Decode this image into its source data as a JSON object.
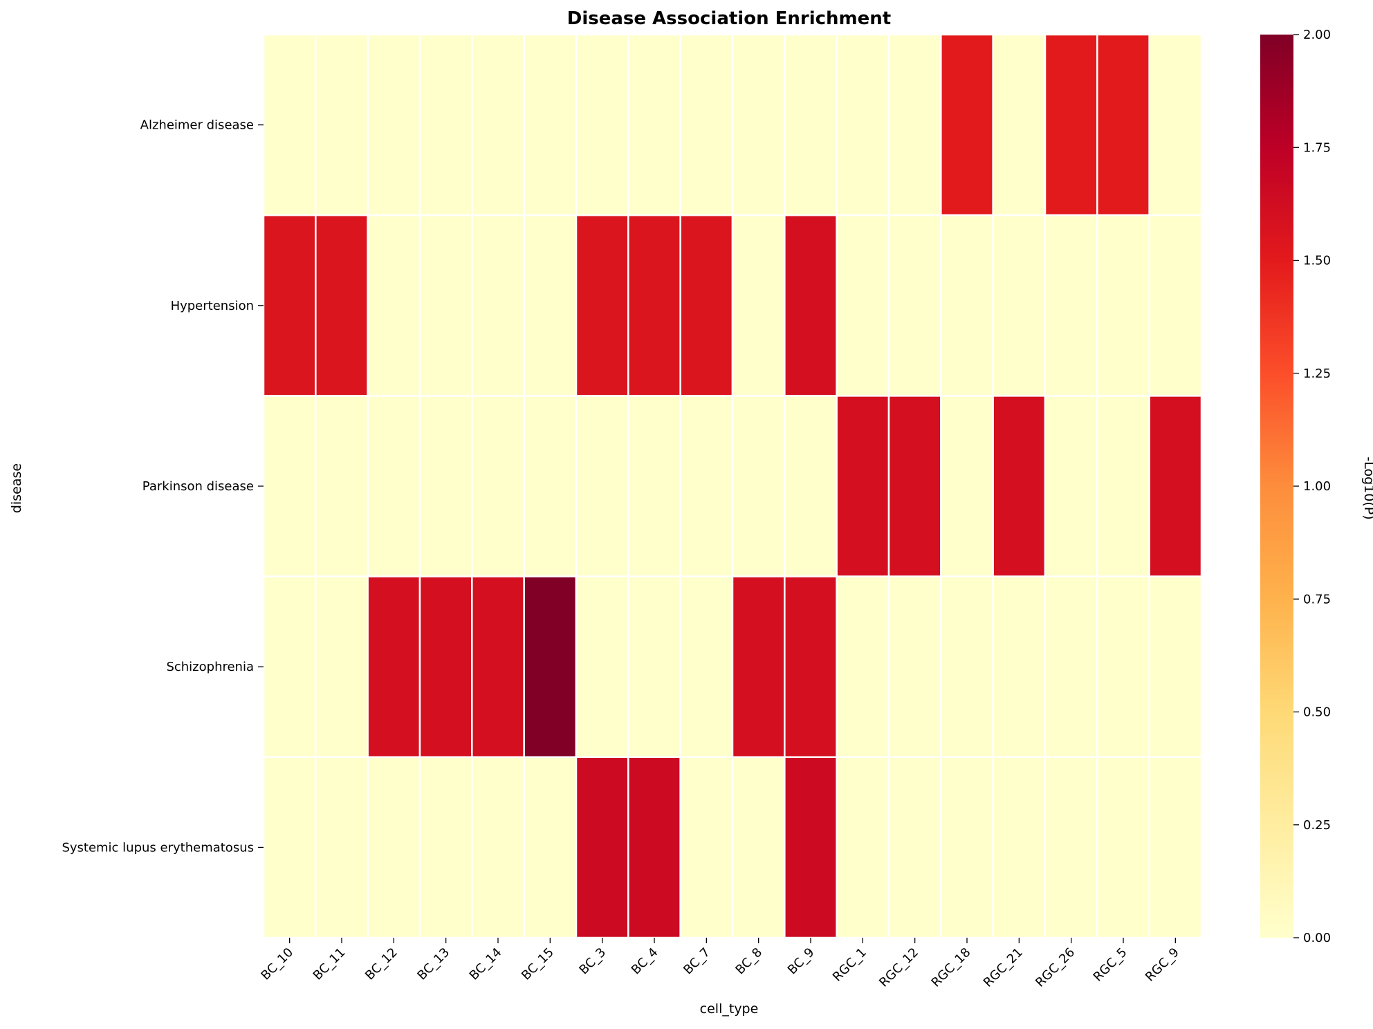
{
  "chart_data": {
    "type": "heatmap",
    "title": "Disease Association Enrichment",
    "xlabel": "cell_type",
    "ylabel": "disease",
    "colorbar_label": "-Log10(P)",
    "colormap": "YlOrRd",
    "vmin": 0,
    "vmax": 2,
    "colorbar_ticks": [
      "0.00",
      "0.25",
      "0.50",
      "0.75",
      "1.00",
      "1.25",
      "1.50",
      "1.75",
      "2.00"
    ],
    "x": [
      "BC_10",
      "BC_11",
      "BC_12",
      "BC_13",
      "BC_14",
      "BC_15",
      "BC_3",
      "BC_4",
      "BC_7",
      "BC_8",
      "BC_9",
      "RGC_1",
      "RGC_12",
      "RGC_18",
      "RGC_21",
      "RGC_26",
      "RGC_5",
      "RGC_9"
    ],
    "y": [
      "Alzheimer disease",
      "Hypertension",
      "Parkinson disease",
      "Schizophrenia",
      "Systemic lupus erythematosus"
    ],
    "values": [
      [
        0,
        0,
        0,
        0,
        0,
        0,
        0,
        0,
        0,
        0,
        0,
        0,
        0,
        1.5,
        0,
        1.5,
        1.5,
        0
      ],
      [
        1.55,
        1.55,
        0,
        0,
        0,
        0,
        1.55,
        1.55,
        1.55,
        0,
        1.6,
        0,
        0,
        0,
        0,
        0,
        0,
        0
      ],
      [
        0,
        0,
        0,
        0,
        0,
        0,
        0,
        0,
        0,
        0,
        0,
        1.6,
        1.6,
        0,
        1.6,
        0,
        0,
        1.6
      ],
      [
        0,
        0,
        1.6,
        1.6,
        1.6,
        2.0,
        0,
        0,
        0,
        1.6,
        1.6,
        0,
        0,
        0,
        0,
        0,
        0,
        0
      ],
      [
        0,
        0,
        0,
        0,
        0,
        0,
        1.65,
        1.65,
        0,
        0,
        1.65,
        0,
        0,
        0,
        0,
        0,
        0,
        0
      ]
    ]
  }
}
